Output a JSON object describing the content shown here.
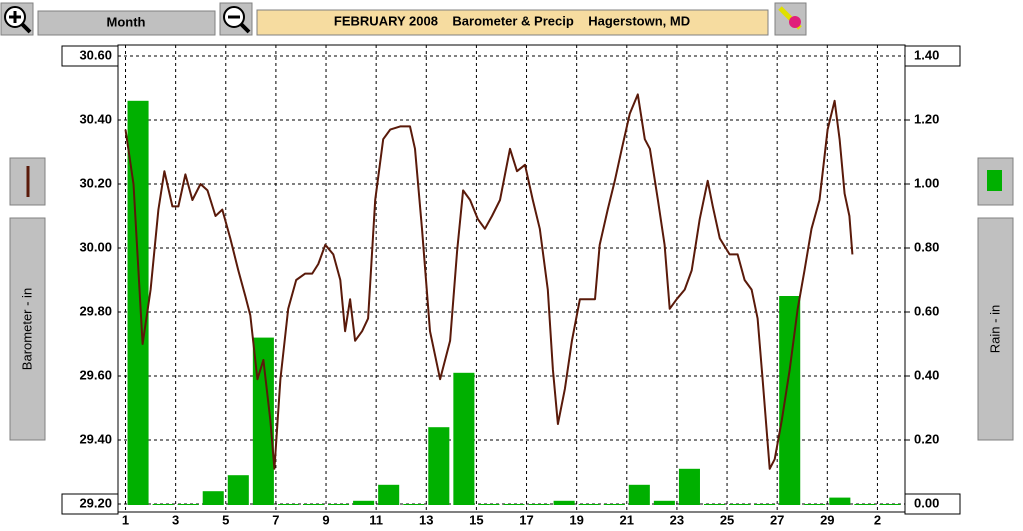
{
  "toolbar": {
    "period": "Month"
  },
  "chart_data": {
    "type": "combo",
    "title": "FEBRUARY 2008    Barometer & Precip    Hagerstown, MD",
    "y_label": "Barometer - in",
    "y2_label": "Rain - in",
    "grid": true,
    "xlim": [
      0.7,
      32.1
    ],
    "xticks": [
      1,
      3,
      5,
      7,
      9,
      11,
      13,
      15,
      17,
      19,
      21,
      23,
      25,
      27,
      29,
      {
        "value": 31,
        "label": "2"
      }
    ],
    "ylim": [
      29.2,
      30.6
    ],
    "yticks": [
      {
        "value": 29.2,
        "label": "29.20"
      },
      {
        "value": 29.4,
        "label": "29.40"
      },
      {
        "value": 29.6,
        "label": "29.60"
      },
      {
        "value": 29.8,
        "label": "29.80"
      },
      {
        "value": 30,
        "label": "30.00"
      },
      {
        "value": 30.2,
        "label": "30.20"
      },
      {
        "value": 30.4,
        "label": "30.40"
      },
      {
        "value": 30.6,
        "label": "30.60"
      }
    ],
    "y2lim": [
      0,
      1.4
    ],
    "y2ticks": [
      {
        "value": 0,
        "label": "0.00"
      },
      {
        "value": 0.2,
        "label": "0.20"
      },
      {
        "value": 0.4,
        "label": "0.40"
      },
      {
        "value": 0.6,
        "label": "0.60"
      },
      {
        "value": 0.8,
        "label": "0.80"
      },
      {
        "value": 1,
        "label": "1.00"
      },
      {
        "value": 1.2,
        "label": "1.20"
      },
      {
        "value": 1.4,
        "label": "1.40"
      }
    ],
    "series": [
      {
        "type": "bar",
        "axis": "y2",
        "color": "#00b000",
        "x": [
          1,
          2,
          3,
          4,
          5,
          6,
          7,
          8,
          9,
          10,
          11,
          12,
          13,
          14,
          15,
          16,
          17,
          18,
          19,
          20,
          21,
          22,
          23,
          24,
          25,
          26,
          27,
          28,
          29,
          30,
          31
        ],
        "values": [
          1.26,
          0,
          0,
          0.04,
          0.09,
          0.52,
          0,
          0,
          0,
          0.01,
          0.06,
          0,
          0.24,
          0.41,
          0,
          0,
          0,
          0.01,
          0,
          0,
          0.06,
          0.01,
          0.11,
          0,
          0,
          0,
          0.65,
          0,
          0.02,
          0,
          0
        ]
      },
      {
        "type": "line",
        "color": "#5a1a0a",
        "x": [
          1.0,
          1.32,
          1.68,
          2.0,
          2.31,
          2.55,
          2.87,
          3.11,
          3.39,
          3.67,
          3.99,
          4.27,
          4.59,
          4.86,
          5.18,
          5.5,
          5.78,
          5.98,
          6.26,
          6.5,
          6.78,
          6.94,
          7.18,
          7.49,
          7.81,
          8.17,
          8.45,
          8.69,
          8.97,
          9.29,
          9.57,
          9.76,
          9.96,
          10.16,
          10.44,
          10.68,
          10.96,
          11.28,
          11.56,
          11.96,
          12.35,
          12.55,
          12.83,
          13.15,
          13.55,
          13.95,
          14.23,
          14.47,
          14.75,
          15.06,
          15.34,
          15.62,
          15.94,
          16.34,
          16.62,
          16.94,
          17.25,
          17.53,
          17.85,
          18.05,
          18.25,
          18.53,
          18.81,
          19.13,
          19.45,
          19.73,
          19.92,
          20.24,
          20.52,
          20.8,
          21.12,
          21.44,
          21.72,
          21.92,
          22.24,
          22.51,
          22.71,
          22.99,
          23.31,
          23.59,
          23.91,
          24.23,
          24.43,
          24.71,
          25.1,
          25.42,
          25.7,
          25.98,
          26.22,
          26.42,
          26.7,
          26.9,
          27.18,
          27.5,
          27.82,
          28.09,
          28.37,
          28.69,
          29.01,
          29.29,
          29.49,
          29.69,
          29.88,
          30.0
        ],
        "values": [
          30.37,
          30.2,
          29.7,
          29.87,
          30.12,
          30.24,
          30.13,
          30.13,
          30.23,
          30.15,
          30.2,
          30.18,
          30.1,
          30.12,
          30.03,
          29.93,
          29.85,
          29.79,
          29.59,
          29.65,
          29.46,
          29.31,
          29.59,
          29.81,
          29.9,
          29.92,
          29.92,
          29.95,
          30.01,
          29.98,
          29.9,
          29.74,
          29.84,
          29.71,
          29.74,
          29.78,
          30.15,
          30.34,
          30.37,
          30.38,
          30.38,
          30.31,
          30.06,
          29.74,
          29.59,
          29.71,
          29.99,
          30.18,
          30.15,
          30.09,
          30.06,
          30.1,
          30.15,
          30.31,
          30.24,
          30.26,
          30.15,
          30.06,
          29.87,
          29.62,
          29.45,
          29.56,
          29.71,
          29.84,
          29.84,
          29.84,
          30.01,
          30.12,
          30.21,
          30.31,
          30.42,
          30.48,
          30.34,
          30.31,
          30.15,
          30.01,
          29.81,
          29.84,
          29.87,
          29.93,
          30.09,
          30.21,
          30.13,
          30.03,
          29.98,
          29.98,
          29.9,
          29.87,
          29.78,
          29.59,
          29.31,
          29.34,
          29.46,
          29.62,
          29.81,
          29.93,
          30.06,
          30.15,
          30.37,
          30.46,
          30.34,
          30.17,
          30.1,
          29.98
        ]
      }
    ]
  }
}
